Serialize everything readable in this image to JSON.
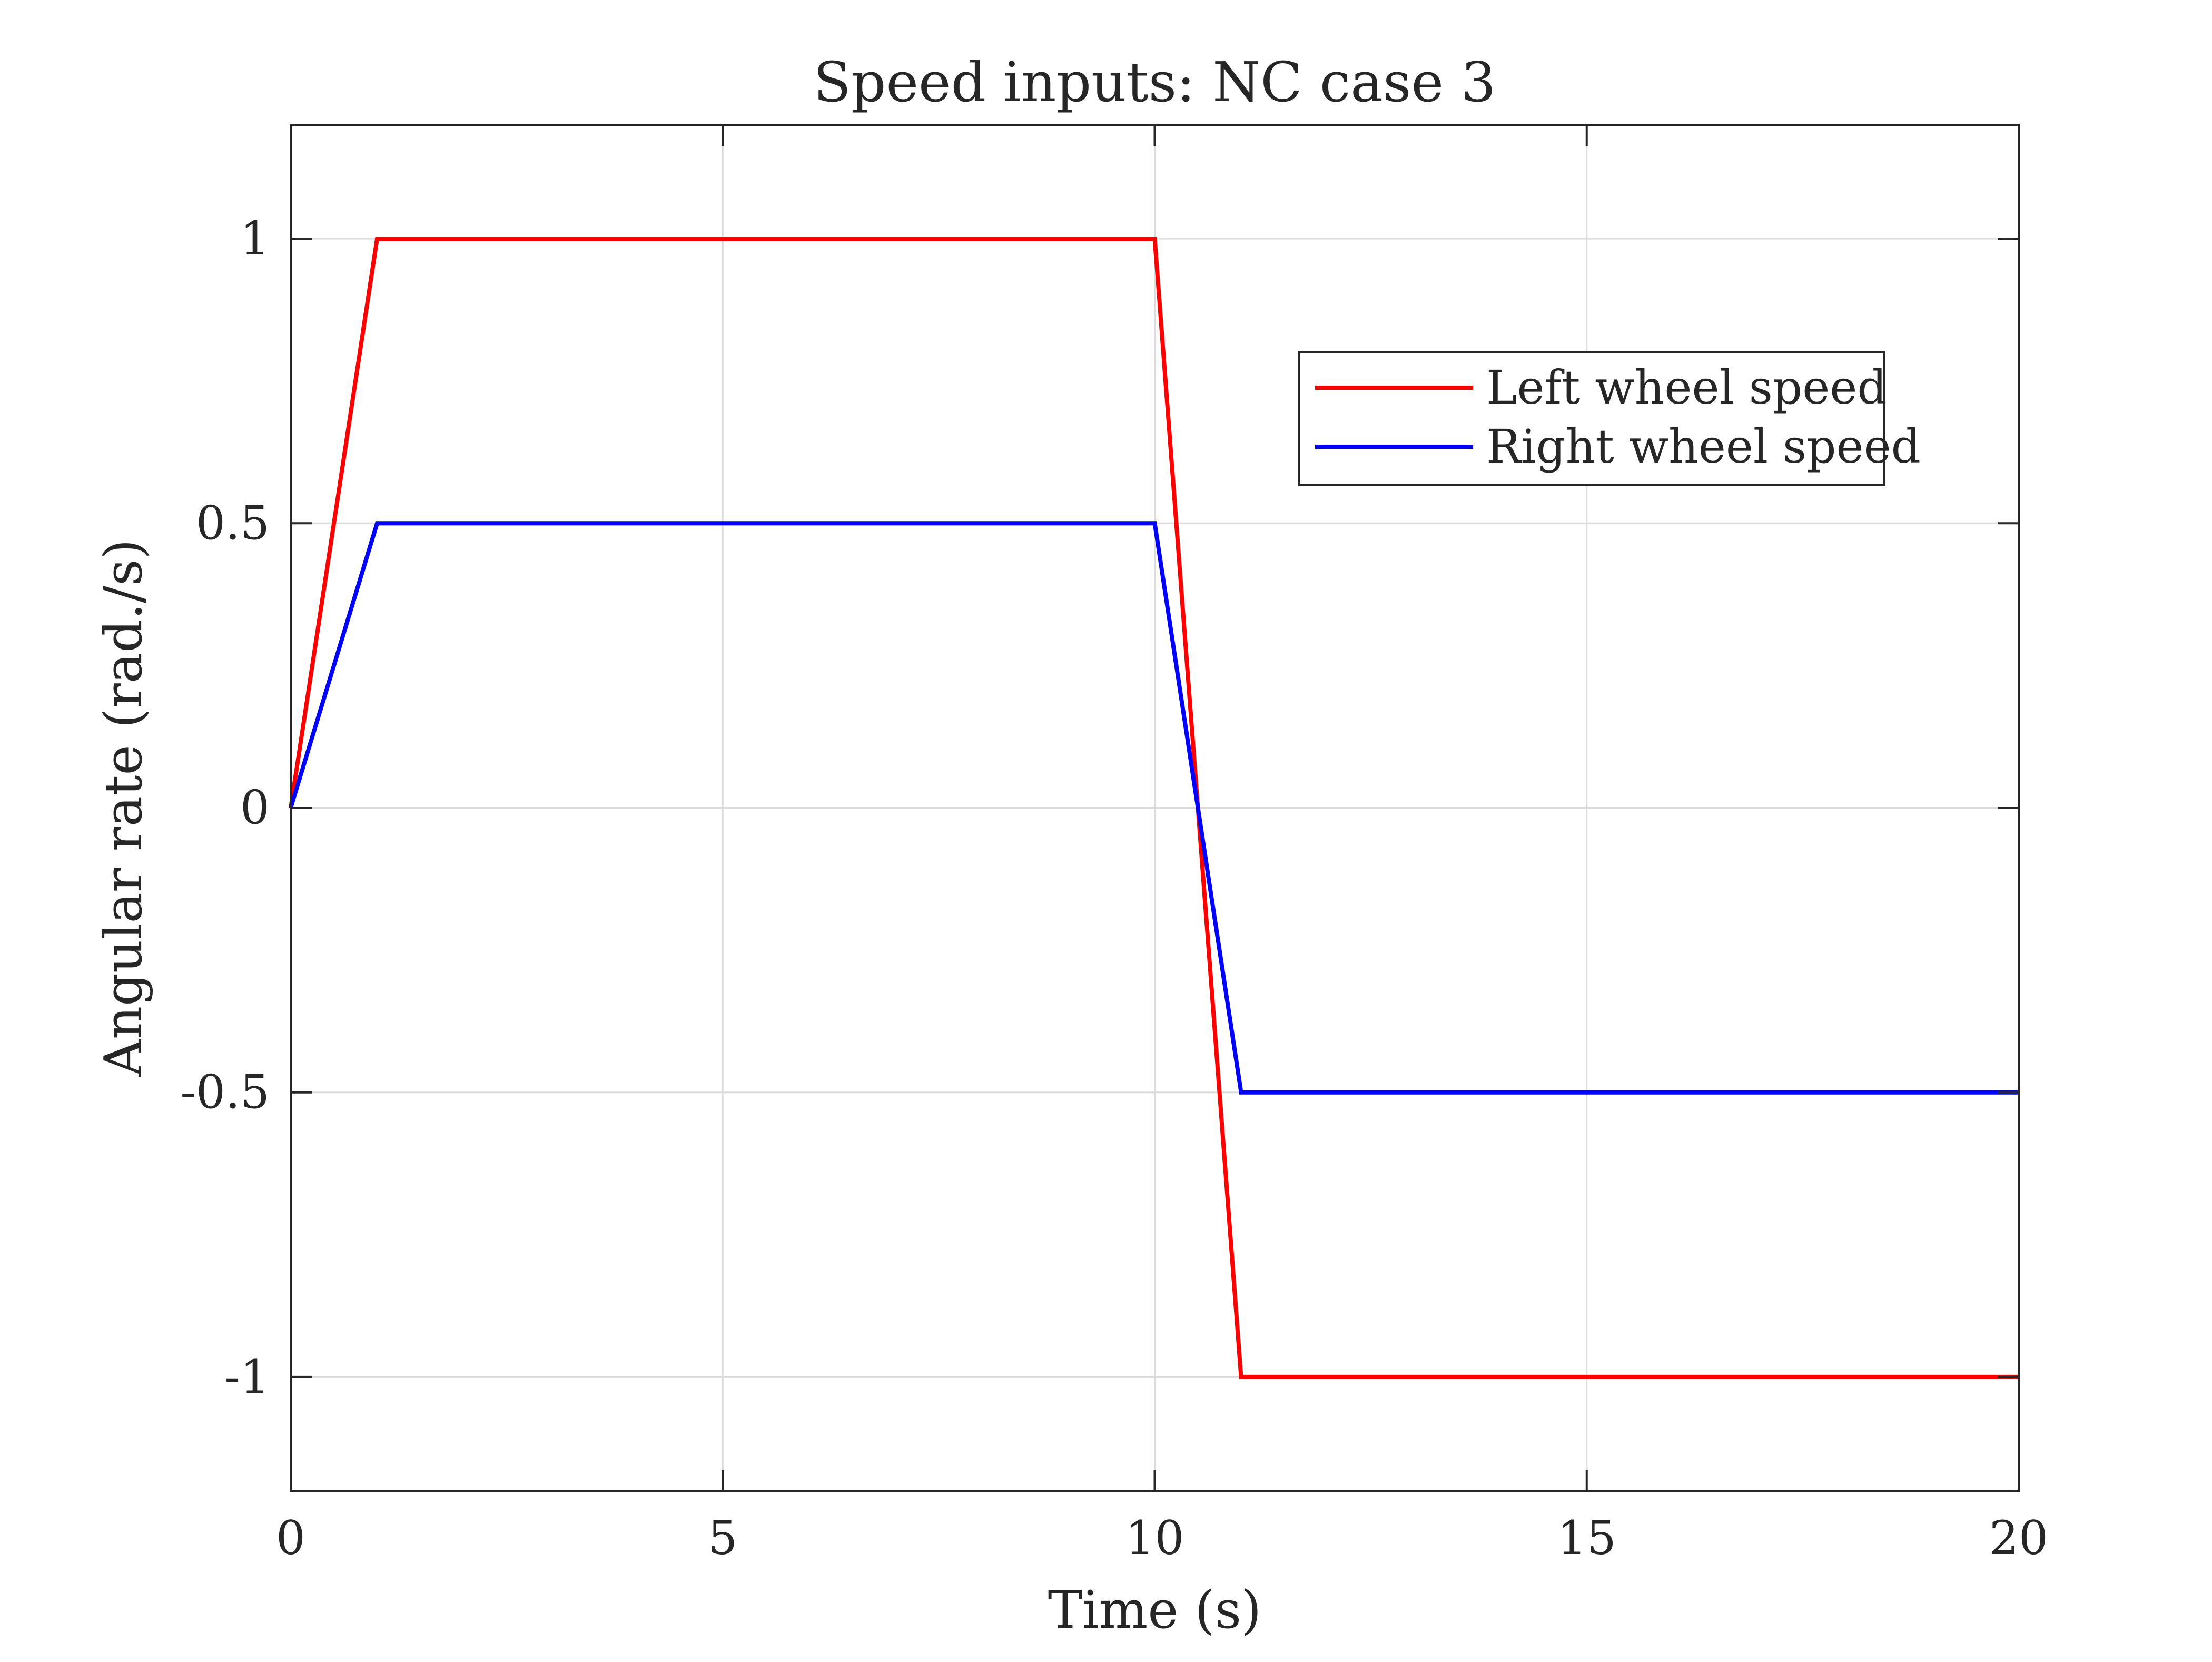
{
  "chart_data": {
    "type": "line",
    "title": "Speed inputs: NC case 3",
    "xlabel": "Time (s)",
    "ylabel": "Angular rate (rad./s)",
    "xlim": [
      0,
      20
    ],
    "ylim": [
      -1.2,
      1.2
    ],
    "xticks": [
      0,
      5,
      10,
      15,
      20
    ],
    "xtick_labels": [
      "0",
      "5",
      "10",
      "15",
      "20"
    ],
    "yticks": [
      -1,
      -0.5,
      0,
      0.5,
      1
    ],
    "ytick_labels": [
      "-1",
      "-0.5",
      "0",
      "0.5",
      "1"
    ],
    "grid": true,
    "legend_position": "top-right",
    "series": [
      {
        "name": "Left wheel speed",
        "color": "#ff0000",
        "x": [
          0,
          1,
          10,
          11,
          20
        ],
        "y": [
          0,
          1,
          1,
          -1,
          -1
        ]
      },
      {
        "name": "Right wheel speed",
        "color": "#0000ff",
        "x": [
          0,
          1,
          10,
          11,
          20
        ],
        "y": [
          0,
          0.5,
          0.5,
          -0.5,
          -0.5
        ]
      }
    ]
  }
}
